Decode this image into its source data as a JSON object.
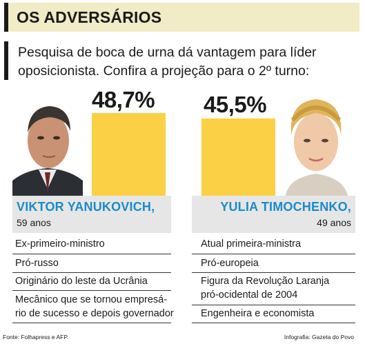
{
  "header": {
    "title": "OS ADVERSÁRIOS"
  },
  "subtitle": "Pesquisa de boca de urna dá vantagem para líder oposicionista. Confira a projeção para o 2º turno:",
  "colors": {
    "bar": "#fcd045",
    "name": "#1a8bc9",
    "header_bg": "#f1ebc6",
    "name_bg": "#e6e6e6"
  },
  "chart_data": {
    "type": "bar",
    "categories": [
      "VIKTOR YANUKOVICH,",
      "YULIA TIMOCHENKO,"
    ],
    "values": [
      48.7,
      45.5
    ],
    "value_labels": [
      "48,7%",
      "45,5%"
    ],
    "title": "",
    "ylim": [
      0,
      100
    ]
  },
  "candidates": [
    {
      "name": "VIKTOR YANUKOVICH,",
      "age": "59 anos",
      "traits": [
        "Ex-primeiro-ministro",
        "Pró-russo",
        "Originário do leste da Ucrânia",
        "Mecânico que se tornou empresá-\nrio de sucesso e depois governador"
      ]
    },
    {
      "name": "YULIA TIMOCHENKO,",
      "age": "49 anos",
      "traits": [
        "Atual primeira-ministra",
        "Pró-europeia",
        "Figura da Revolução Laranja\npró-ocidental de 2004",
        "Engenheira e economista"
      ]
    }
  ],
  "footer": {
    "source": "Fonte: Folhapress e AFP.",
    "credit": "Infografia: Gazeta do Povo"
  }
}
